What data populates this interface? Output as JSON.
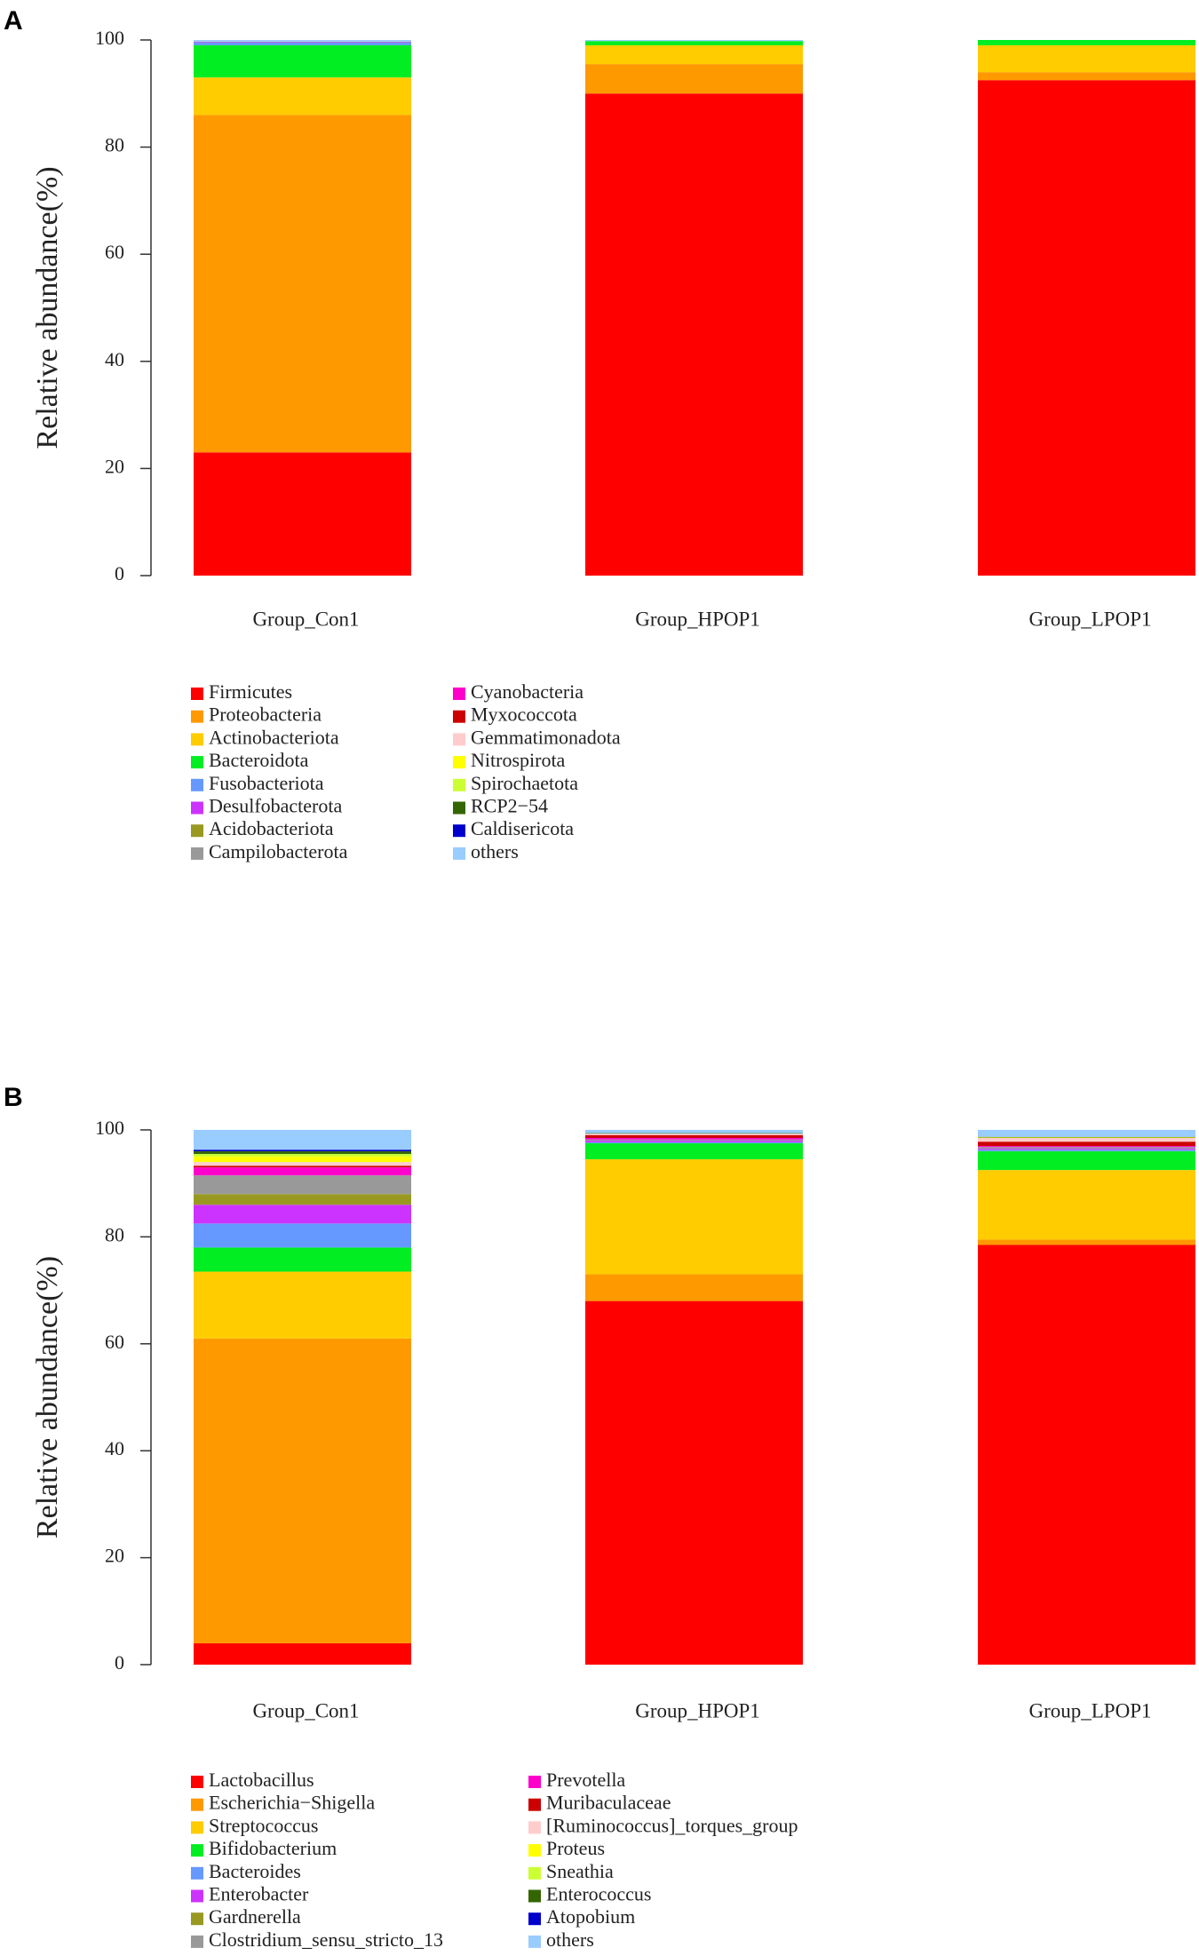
{
  "chart_data": [
    {
      "type": "bar",
      "stacked": true,
      "label": "A",
      "y_label": "Relative abundance(%)",
      "categories": [
        "Group_Con1",
        "Group_HPOP1",
        "Group_LPOP1"
      ],
      "ylim": [
        0,
        100
      ],
      "yticks": [
        0,
        20,
        40,
        60,
        80,
        100
      ],
      "series": [
        {
          "name": "Firmicutes",
          "color": "#ff0000",
          "values": [
            23,
            90,
            92.5
          ]
        },
        {
          "name": "Proteobacteria",
          "color": "#ff9900",
          "values": [
            63,
            5.5,
            1.5
          ]
        },
        {
          "name": "Actinobacteriota",
          "color": "#ffcc00",
          "values": [
            7,
            3.5,
            5
          ]
        },
        {
          "name": "Bacteroidota",
          "color": "#00ee22",
          "values": [
            6,
            0.8,
            1
          ]
        },
        {
          "name": "Fusobacteriota",
          "color": "#6699ff",
          "values": [
            0.5,
            0,
            0
          ]
        },
        {
          "name": "Desulfobacterota",
          "color": "#cc33ff",
          "values": [
            0.1,
            0,
            0
          ]
        },
        {
          "name": "Acidobacteriota",
          "color": "#999922",
          "values": [
            0,
            0,
            0
          ]
        },
        {
          "name": "Campilobacterota",
          "color": "#999999",
          "values": [
            0.1,
            0,
            0
          ]
        },
        {
          "name": "Cyanobacteria",
          "color": "#ff00cc",
          "values": [
            0,
            0,
            0
          ]
        },
        {
          "name": "Myxococcota",
          "color": "#cc0000",
          "values": [
            0,
            0,
            0
          ]
        },
        {
          "name": "Gemmatimonadota",
          "color": "#ffcccc",
          "values": [
            0,
            0,
            0
          ]
        },
        {
          "name": "Nitrospirota",
          "color": "#ffff00",
          "values": [
            0,
            0,
            0
          ]
        },
        {
          "name": "Spirochaetota",
          "color": "#ccff33",
          "values": [
            0,
            0,
            0
          ]
        },
        {
          "name": "RCP2−54",
          "color": "#336600",
          "values": [
            0,
            0,
            0
          ]
        },
        {
          "name": "Caldisericota",
          "color": "#0000cc",
          "values": [
            0,
            0,
            0
          ]
        },
        {
          "name": "others",
          "color": "#99ccff",
          "values": [
            0.3,
            0.2,
            0
          ]
        }
      ]
    },
    {
      "type": "bar",
      "stacked": true,
      "label": "B",
      "y_label": "Relative abundance(%)",
      "categories": [
        "Group_Con1",
        "Group_HPOP1",
        "Group_LPOP1"
      ],
      "ylim": [
        0,
        100
      ],
      "yticks": [
        0,
        20,
        40,
        60,
        80,
        100
      ],
      "series": [
        {
          "name": "Lactobacillus",
          "color": "#ff0000",
          "values": [
            4,
            68,
            78.5
          ]
        },
        {
          "name": "Escherichia−Shigella",
          "color": "#ff9900",
          "values": [
            57,
            5,
            1
          ]
        },
        {
          "name": "Streptococcus",
          "color": "#ffcc00",
          "values": [
            12.5,
            21.5,
            13
          ]
        },
        {
          "name": "Bifidobacterium",
          "color": "#00ee22",
          "values": [
            4.5,
            3,
            3.5
          ]
        },
        {
          "name": "Bacteroides",
          "color": "#6699ff",
          "values": [
            4.5,
            0.2,
            0.3
          ]
        },
        {
          "name": "Enterobacter",
          "color": "#cc33ff",
          "values": [
            3.5,
            0.3,
            0.2
          ]
        },
        {
          "name": "Gardnerella",
          "color": "#999922",
          "values": [
            2,
            0,
            0
          ]
        },
        {
          "name": "Clostridium_sensu_stricto_13",
          "color": "#999999",
          "values": [
            3.5,
            0.2,
            0.3
          ]
        },
        {
          "name": "Prevotella",
          "color": "#ff00cc",
          "values": [
            1.5,
            0.3,
            0.2
          ]
        },
        {
          "name": "Muribaculaceae",
          "color": "#cc0000",
          "values": [
            0.3,
            0.5,
            0.8
          ]
        },
        {
          "name": "[Ruminococcus]_torques_group",
          "color": "#ffcccc",
          "values": [
            0.7,
            0.3,
            0.7
          ]
        },
        {
          "name": "Proteus",
          "color": "#ffff00",
          "values": [
            1,
            0,
            0.1
          ]
        },
        {
          "name": "Sneathia",
          "color": "#ccff33",
          "values": [
            0.5,
            0,
            0
          ]
        },
        {
          "name": "Enterococcus",
          "color": "#336600",
          "values": [
            0.5,
            0.1,
            0.1
          ]
        },
        {
          "name": "Atopobium",
          "color": "#0000cc",
          "values": [
            0.3,
            0,
            0
          ]
        },
        {
          "name": "others",
          "color": "#99ccff",
          "values": [
            3.7,
            0.6,
            1.3
          ]
        }
      ]
    }
  ]
}
